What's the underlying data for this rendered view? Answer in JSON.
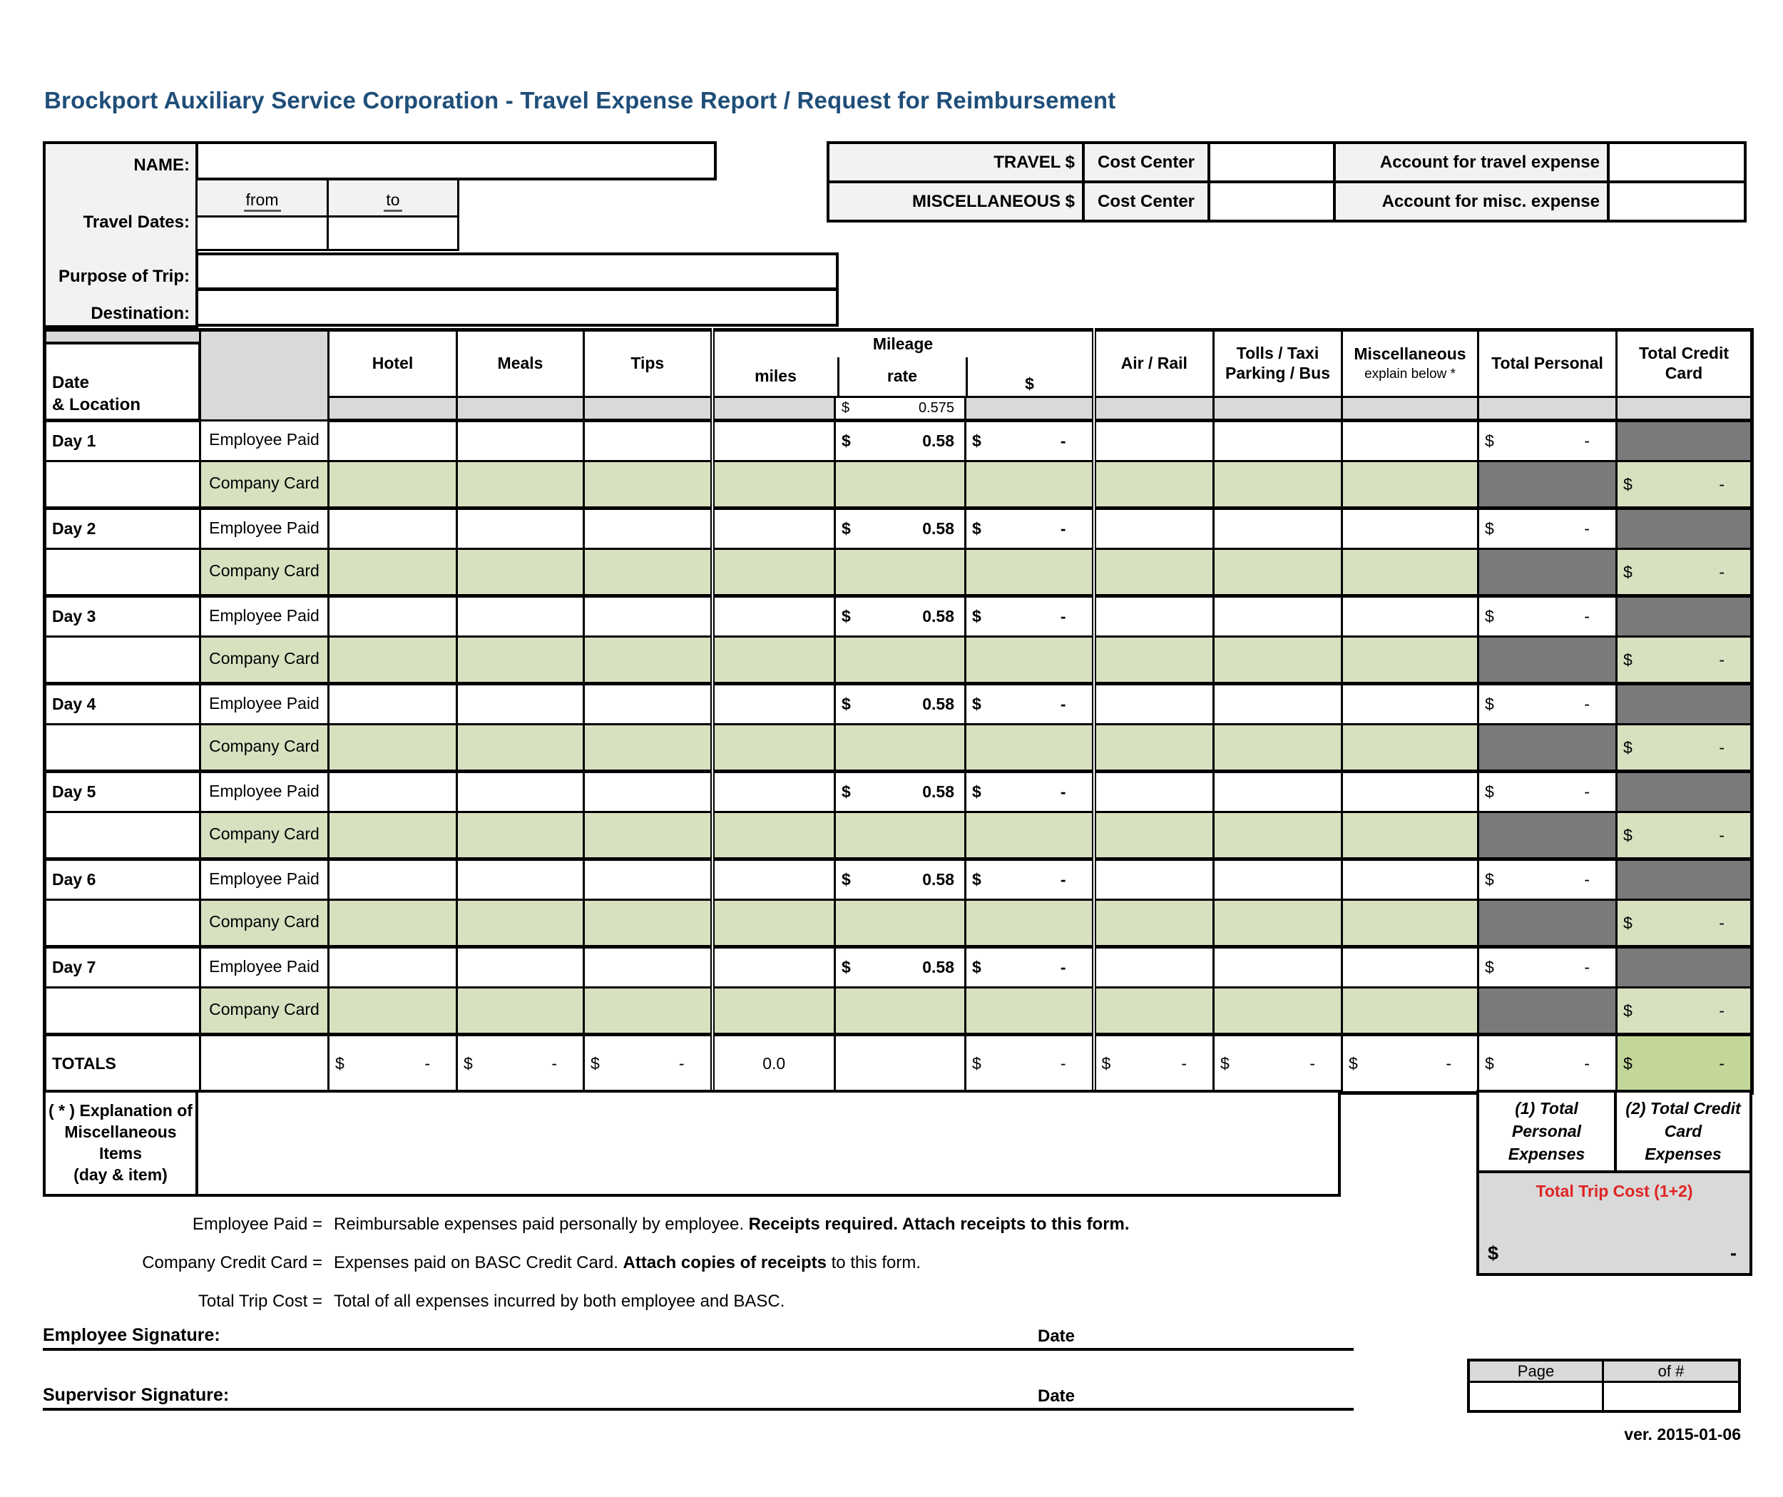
{
  "title": "Brockport Auxiliary Service Corporation  - Travel Expense Report / Request for Reimbursement",
  "colors": {
    "title": "#1F4E79",
    "gray_light": "#F2F2F2",
    "gray_mid": "#D9D9D9",
    "gray_dark": "#7A7A7A",
    "green_light": "#D7E1C0",
    "green_total": "#C4D79B",
    "red": "#E02424"
  },
  "tokens": {
    "currency": "$",
    "dash": "-"
  },
  "info": {
    "name_label": "NAME:",
    "name_value": "",
    "travel_dates_label": "Travel Dates:",
    "from_label": "from",
    "to_label": "to",
    "from_value": "",
    "to_value": "",
    "purpose_label": "Purpose of Trip:",
    "purpose_value": "",
    "destination_label": "Destination:",
    "destination_value": ""
  },
  "accounts": {
    "rows": [
      {
        "type_label": "TRAVEL $",
        "cost_center_label": "Cost Center",
        "cost_center_value": "",
        "account_label": "Account for travel expense",
        "account_value": ""
      },
      {
        "type_label": "MISCELLANEOUS $",
        "cost_center_label": "Cost Center",
        "cost_center_value": "",
        "account_label": "Account for misc. expense",
        "account_value": ""
      }
    ]
  },
  "table": {
    "headers": {
      "date_line1": "Date",
      "date_line2": "& Location",
      "hotel": "Hotel",
      "meals": "Meals",
      "tips": "Tips",
      "mileage": "Mileage",
      "miles": "miles",
      "rate": "rate",
      "dollar": "$",
      "air_rail": "Air / Rail",
      "tolls_line1": "Tolls / Taxi",
      "tolls_line2": "Parking / Bus",
      "misc_line1": "Miscellaneous",
      "misc_line2": "explain below *",
      "total_personal": "Total Personal",
      "total_credit_line1": "Total Credit",
      "total_credit_line2": "Card"
    },
    "std_rate": {
      "currency": "$",
      "value": "0.575"
    },
    "payers": {
      "employee": "Employee Paid",
      "company": "Company Card"
    },
    "day_values": {
      "rate": "0.58"
    },
    "days": [
      {
        "label": "Day 1"
      },
      {
        "label": "Day 2"
      },
      {
        "label": "Day 3"
      },
      {
        "label": "Day 4"
      },
      {
        "label": "Day 5"
      },
      {
        "label": "Day 6"
      },
      {
        "label": "Day 7"
      }
    ]
  },
  "totals": {
    "label": "TOTALS",
    "miles": "0.0"
  },
  "summary": {
    "box1": "(1) Total Personal Expenses",
    "box2": "(2) Total Credit Card Expenses",
    "trip_label": "Total Trip Cost (1+2)"
  },
  "explanation": {
    "l1": "( * ) Explanation of",
    "l2": "Miscellaneous",
    "l3": "Items",
    "l4": "(day & item)",
    "value": ""
  },
  "notes": [
    {
      "term": "Employee Paid =",
      "desc_normal": "Reimbursable expenses paid personally by employee. ",
      "desc_bold": "Receipts required. Attach receipts to this form.",
      "desc_after": ""
    },
    {
      "term": "Company Credit Card =",
      "desc_normal": "Expenses paid on BASC Credit Card. ",
      "desc_bold": "Attach copies of receipts",
      "desc_after": " to this form."
    },
    {
      "term": "Total Trip Cost =",
      "desc_normal": "Total of all expenses incurred by both employee and BASC.",
      "desc_bold": "",
      "desc_after": ""
    }
  ],
  "signatures": [
    {
      "label": "Employee Signature:",
      "date_label": "Date"
    },
    {
      "label": "Supervisor Signature:",
      "date_label": "Date"
    }
  ],
  "page_box": {
    "page_label": "Page",
    "of_label": "of #",
    "page_value": "",
    "of_value": ""
  },
  "version": "ver. 2015-01-06"
}
